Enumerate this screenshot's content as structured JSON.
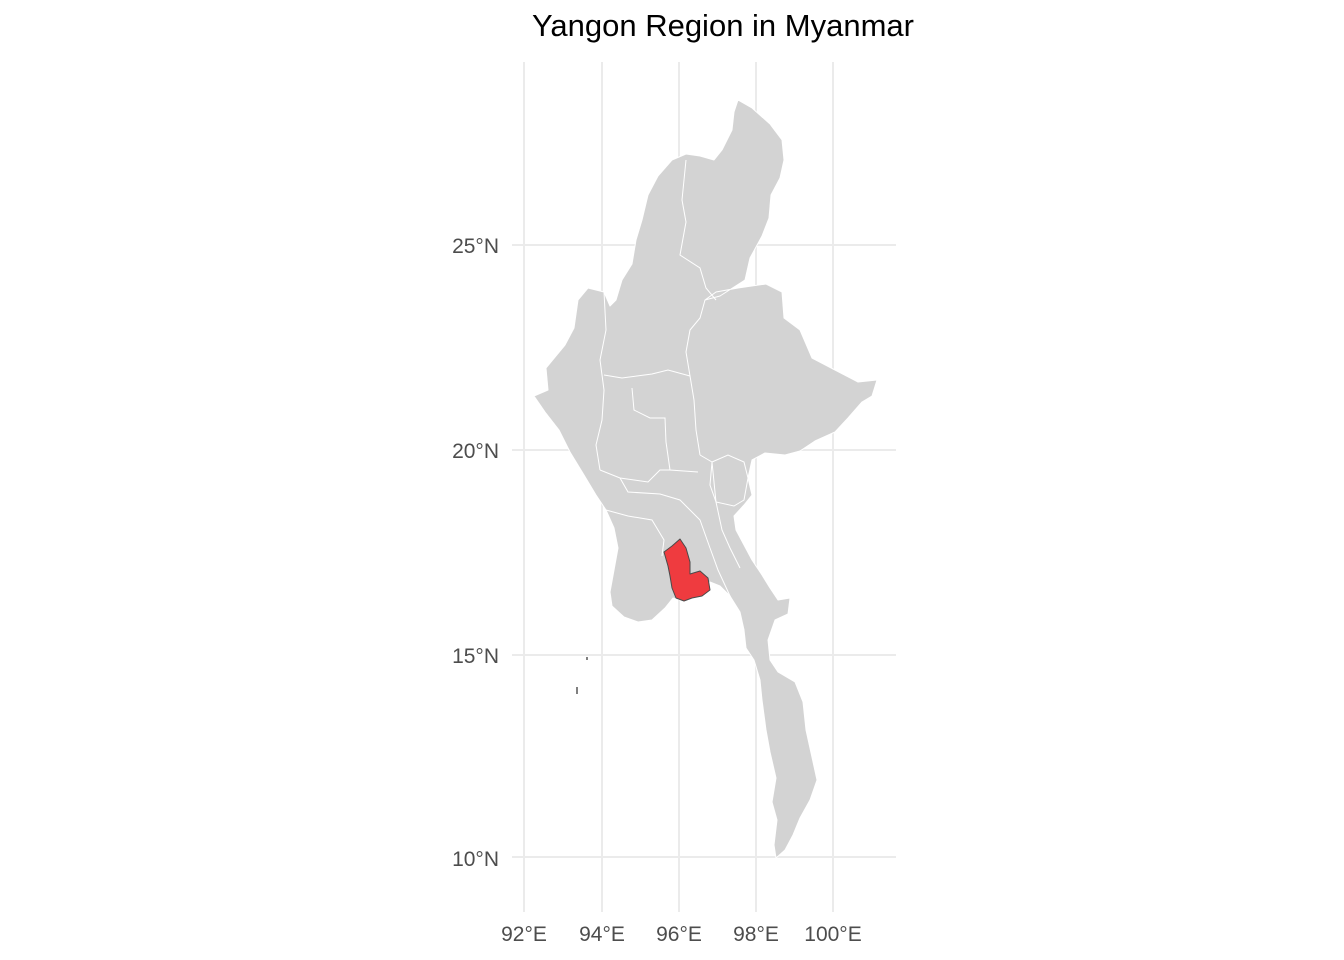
{
  "title": "Yangon Region in Myanmar",
  "map": {
    "country": "Myanmar",
    "highlighted_region": "Yangon Region",
    "colors": {
      "land": "#d3d3d3",
      "highlight": "#ef3b3f",
      "region_border": "#ffffff",
      "highlight_border": "#4a4a4a",
      "grid": "#ebebeb",
      "background": "#ffffff"
    },
    "grid": true
  },
  "axes": {
    "x_ticks": [
      "92°E",
      "94°E",
      "96°E",
      "98°E",
      "100°E"
    ],
    "y_ticks": [
      "25°N",
      "20°N",
      "15°N",
      "10°N"
    ]
  }
}
